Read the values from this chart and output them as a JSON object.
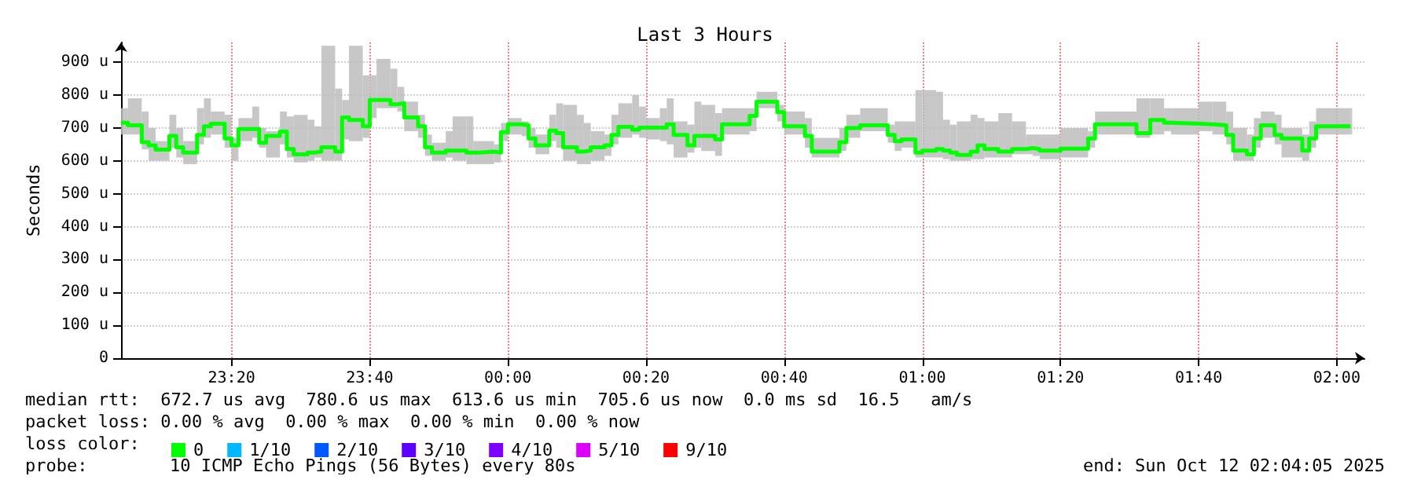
{
  "chart_data": {
    "type": "step",
    "title": "Last 3 Hours",
    "ylabel": "Seconds",
    "legend_title": "loss color:",
    "annotations": [
      "median rtt:  672.7 us avg  780.6 us max  613.6 us min  705.6 us now  0.0 ms sd  16.5   am/s",
      "packet loss: 0.00 % avg  0.00 % max  0.00 % min  0.00 % now",
      "probe:",
      "10 ICMP Echo Pings (56 Bytes) every 80s",
      "end: Sun Oct 12 02:04:05 2025"
    ],
    "xlim": [
      "2025-10-11T23:04",
      "2025-10-12T02:04"
    ],
    "xticks": [
      {
        "value": "2025-10-11T23:20",
        "label": "23:20"
      },
      {
        "value": "2025-10-11T23:40",
        "label": "23:40"
      },
      {
        "value": "2025-10-12T00:00",
        "label": "00:00"
      },
      {
        "value": "2025-10-12T00:20",
        "label": "00:20"
      },
      {
        "value": "2025-10-12T00:40",
        "label": "00:40"
      },
      {
        "value": "2025-10-12T01:00",
        "label": "01:00"
      },
      {
        "value": "2025-10-12T01:20",
        "label": "01:20"
      },
      {
        "value": "2025-10-12T01:40",
        "label": "01:40"
      },
      {
        "value": "2025-10-12T02:00",
        "label": "02:00"
      }
    ],
    "ylim": [
      0,
      960
    ],
    "yticks": [
      0,
      {
        "value": 100,
        "label": "100 u"
      },
      {
        "value": 200,
        "label": "200 u"
      },
      {
        "value": 300,
        "label": "300 u"
      },
      {
        "value": 400,
        "label": "400 u"
      },
      {
        "value": 500,
        "label": "500 u"
      },
      {
        "value": 600,
        "label": "600 u"
      },
      {
        "value": 700,
        "label": "700 u"
      },
      {
        "value": 800,
        "label": "800 u"
      },
      {
        "value": 900,
        "label": "900 u"
      }
    ],
    "grid": true,
    "legend": "bottom left",
    "series": [
      {
        "name": "0",
        "color": "#00ff00",
        "x": [
          "2025-10-11T23:04",
          "2025-10-11T23:05",
          "2025-10-11T23:07",
          "2025-10-11T23:08",
          "2025-10-11T23:09",
          "2025-10-11T23:11",
          "2025-10-11T23:12",
          "2025-10-11T23:13",
          "2025-10-11T23:15",
          "2025-10-11T23:16",
          "2025-10-11T23:17",
          "2025-10-11T23:19",
          "2025-10-11T23:20",
          "2025-10-11T23:21",
          "2025-10-11T23:23",
          "2025-10-11T23:24",
          "2025-10-11T23:25",
          "2025-10-11T23:27",
          "2025-10-11T23:28",
          "2025-10-11T23:29",
          "2025-10-11T23:31",
          "2025-10-11T23:32",
          "2025-10-11T23:33",
          "2025-10-11T23:35",
          "2025-10-11T23:36",
          "2025-10-11T23:37",
          "2025-10-11T23:39",
          "2025-10-11T23:40",
          "2025-10-11T23:41",
          "2025-10-11T23:43",
          "2025-10-11T23:44",
          "2025-10-11T23:45",
          "2025-10-11T23:47",
          "2025-10-11T23:48",
          "2025-10-11T23:49",
          "2025-10-11T23:51",
          "2025-10-11T23:52",
          "2025-10-11T23:54",
          "2025-10-11T23:55",
          "2025-10-11T23:56",
          "2025-10-11T23:58",
          "2025-10-11T23:59",
          "2025-10-12T00:00",
          "2025-10-12T00:02",
          "2025-10-12T00:03",
          "2025-10-12T00:04",
          "2025-10-12T00:06",
          "2025-10-12T00:07",
          "2025-10-12T00:08",
          "2025-10-12T00:10",
          "2025-10-12T00:11",
          "2025-10-12T00:12",
          "2025-10-12T00:14",
          "2025-10-12T00:15",
          "2025-10-12T00:16",
          "2025-10-12T00:18",
          "2025-10-12T00:19",
          "2025-10-12T00:20",
          "2025-10-12T00:22",
          "2025-10-12T00:23",
          "2025-10-12T00:24",
          "2025-10-12T00:26",
          "2025-10-12T00:27",
          "2025-10-12T00:28",
          "2025-10-12T00:30",
          "2025-10-12T00:31",
          "2025-10-12T00:35",
          "2025-10-12T00:36",
          "2025-10-12T00:39",
          "2025-10-12T00:40",
          "2025-10-12T00:43",
          "2025-10-12T00:44",
          "2025-10-12T00:48",
          "2025-10-12T00:49",
          "2025-10-12T00:51",
          "2025-10-12T00:55",
          "2025-10-12T00:56",
          "2025-10-12T00:57",
          "2025-10-12T00:59",
          "2025-10-12T01:00",
          "2025-10-12T01:02",
          "2025-10-12T01:03",
          "2025-10-12T01:04",
          "2025-10-12T01:05",
          "2025-10-12T01:07",
          "2025-10-12T01:08",
          "2025-10-12T01:09",
          "2025-10-12T01:11",
          "2025-10-12T01:13",
          "2025-10-12T01:15",
          "2025-10-12T01:16",
          "2025-10-12T01:17",
          "2025-10-12T01:20",
          "2025-10-12T01:24",
          "2025-10-12T01:25",
          "2025-10-12T01:31",
          "2025-10-12T01:33",
          "2025-10-12T01:35",
          "2025-10-12T01:36",
          "2025-10-12T01:40",
          "2025-10-12T01:42",
          "2025-10-12T01:44",
          "2025-10-12T01:45",
          "2025-10-12T01:47",
          "2025-10-12T01:48",
          "2025-10-12T01:49",
          "2025-10-12T01:51",
          "2025-10-12T01:52",
          "2025-10-12T01:55",
          "2025-10-12T01:56",
          "2025-10-12T01:57",
          "2025-10-12T02:02"
        ],
        "values": [
          716,
          708,
          657,
          647,
          634,
          676,
          641,
          625,
          679,
          705,
          713,
          668,
          647,
          697,
          697,
          655,
          676,
          689,
          636,
          620,
          625,
          628,
          641,
          628,
          732,
          724,
          705,
          785,
          785,
          772,
          775,
          732,
          705,
          641,
          625,
          631,
          631,
          625,
          625,
          628,
          625,
          687,
          711,
          708,
          668,
          647,
          692,
          684,
          641,
          628,
          631,
          641,
          647,
          679,
          703,
          695,
          701,
          701,
          701,
          711,
          679,
          647,
          676,
          676,
          665,
          711,
          737,
          780,
          748,
          705,
          676,
          628,
          657,
          700,
          708,
          679,
          660,
          665,
          625,
          631,
          636,
          631,
          625,
          618,
          628,
          647,
          636,
          628,
          636,
          639,
          636,
          631,
          637,
          668,
          711,
          684,
          724,
          716,
          713,
          711,
          708,
          679,
          631,
          620,
          668,
          708,
          679,
          668,
          631,
          668,
          705,
          705
        ],
        "lower": [
          680,
          680,
          635,
          600,
          600,
          640,
          610,
          590,
          650,
          670,
          680,
          640,
          600,
          660,
          670,
          640,
          610,
          650,
          610,
          595,
          600,
          610,
          600,
          600,
          665,
          660,
          670,
          730,
          760,
          760,
          750,
          690,
          670,
          615,
          600,
          610,
          600,
          590,
          590,
          590,
          595,
          660,
          680,
          675,
          640,
          620,
          660,
          640,
          600,
          590,
          590,
          600,
          615,
          650,
          670,
          680,
          670,
          665,
          660,
          650,
          610,
          625,
          640,
          630,
          615,
          680,
          690,
          760,
          720,
          680,
          640,
          610,
          630,
          670,
          690,
          655,
          630,
          640,
          610,
          610,
          610,
          605,
          600,
          600,
          605,
          605,
          610,
          610,
          620,
          620,
          615,
          605,
          610,
          640,
          680,
          670,
          680,
          690,
          680,
          690,
          680,
          650,
          600,
          600,
          640,
          670,
          650,
          610,
          600,
          640,
          680,
          680
        ],
        "upper": [
          760,
          790,
          750,
          700,
          660,
          740,
          700,
          660,
          760,
          790,
          750,
          740,
          670,
          730,
          765,
          700,
          690,
          750,
          735,
          740,
          725,
          705,
          950,
          820,
          785,
          950,
          860,
          860,
          910,
          880,
          825,
          780,
          740,
          680,
          655,
          690,
          735,
          735,
          660,
          660,
          650,
          715,
          730,
          720,
          700,
          680,
          740,
          775,
          770,
          740,
          715,
          690,
          680,
          740,
          775,
          800,
          765,
          730,
          760,
          790,
          720,
          710,
          780,
          770,
          745,
          760,
          760,
          810,
          770,
          750,
          730,
          670,
          700,
          740,
          760,
          710,
          720,
          720,
          815,
          815,
          810,
          725,
          710,
          720,
          740,
          730,
          720,
          745,
          720,
          680,
          680,
          680,
          700,
          690,
          750,
          790,
          790,
          760,
          760,
          780,
          780,
          750,
          700,
          680,
          730,
          750,
          740,
          700,
          680,
          720,
          760,
          760
        ]
      },
      {
        "name": "1/10",
        "color": "#00b8ff"
      },
      {
        "name": "2/10",
        "color": "#0059ff"
      },
      {
        "name": "3/10",
        "color": "#5e00ff"
      },
      {
        "name": "4/10",
        "color": "#7e00ff"
      },
      {
        "name": "5/10",
        "color": "#dd00ff"
      },
      {
        "name": "9/10",
        "color": "#ff0000"
      }
    ]
  }
}
